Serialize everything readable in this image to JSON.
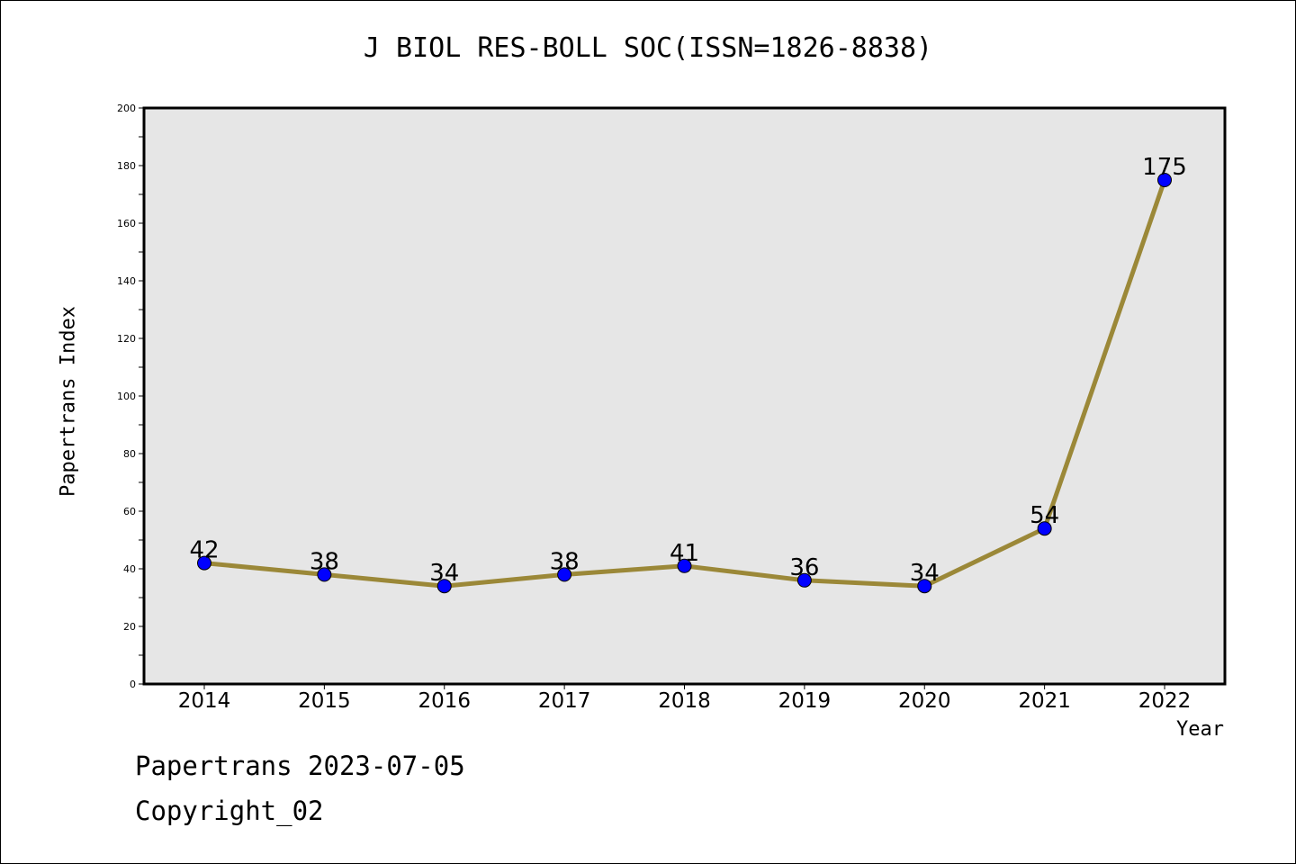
{
  "chart_data": {
    "type": "line",
    "title": "J BIOL RES-BOLL SOC(ISSN=1826-8838)",
    "xlabel": "Year",
    "ylabel": "Papertrans Index",
    "categories": [
      "2014",
      "2015",
      "2016",
      "2017",
      "2018",
      "2019",
      "2020",
      "2021",
      "2022"
    ],
    "values": [
      42,
      38,
      34,
      38,
      41,
      36,
      34,
      54,
      175
    ],
    "data_labels": [
      "42",
      "38",
      "34",
      "38",
      "41",
      "36",
      "34",
      "54",
      "175"
    ],
    "ylim": [
      0,
      200
    ],
    "yticks": [
      "0",
      "20",
      "40",
      "60",
      "80",
      "100",
      "120",
      "140",
      "160",
      "180",
      "200"
    ],
    "line_color": "#9b8838",
    "marker_color": "#0000ff",
    "plot_background": "#e6e6e6",
    "grid": false
  },
  "footer": {
    "line1": "Papertrans 2023-07-05",
    "line2": "Copyright_02"
  }
}
